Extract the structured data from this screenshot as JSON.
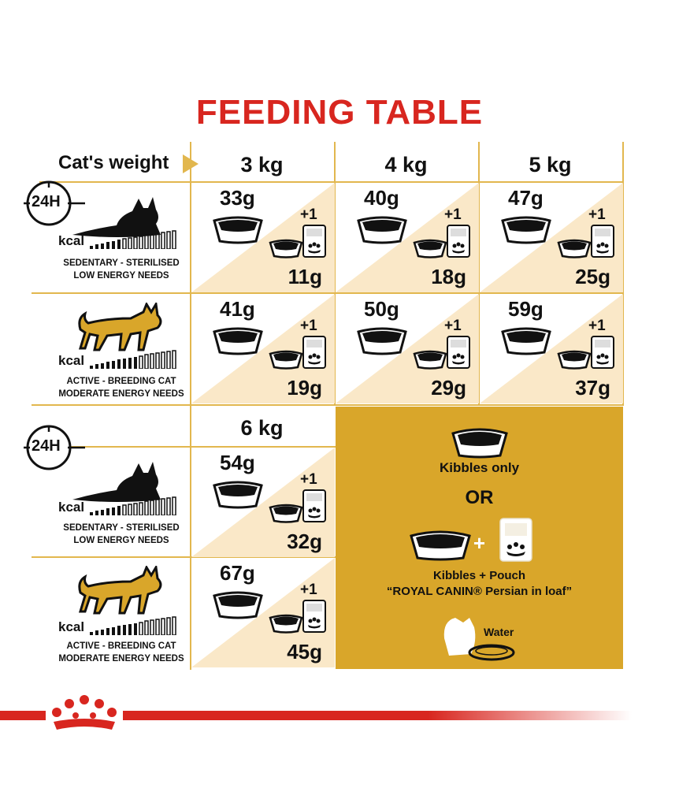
{
  "title": "FEEDING TABLE",
  "cats_weight_label": "Cat's weight",
  "weights": [
    "3 kg",
    "4 kg",
    "5 kg",
    "6 kg"
  ],
  "clock_label": "24H",
  "profiles": {
    "sedentary": {
      "kcal": "kcal",
      "line1": "SEDENTARY - STERILISED",
      "line2": "LOW ENERGY NEEDS"
    },
    "active": {
      "kcal": "kcal",
      "line1": "ACTIVE - BREEDING CAT",
      "line2": "MODERATE ENERGY NEEDS"
    }
  },
  "plus_one": "+1",
  "rows": {
    "r1": [
      {
        "kibbles": "33g",
        "pouch_kibbles": "11g"
      },
      {
        "kibbles": "40g",
        "pouch_kibbles": "18g"
      },
      {
        "kibbles": "47g",
        "pouch_kibbles": "25g"
      }
    ],
    "r2": [
      {
        "kibbles": "41g",
        "pouch_kibbles": "19g"
      },
      {
        "kibbles": "50g",
        "pouch_kibbles": "29g"
      },
      {
        "kibbles": "59g",
        "pouch_kibbles": "37g"
      }
    ],
    "r3": [
      {
        "kibbles": "54g",
        "pouch_kibbles": "32g"
      }
    ],
    "r4": [
      {
        "kibbles": "67g",
        "pouch_kibbles": "45g"
      }
    ]
  },
  "legend": {
    "kibbles_only": "Kibbles only",
    "or": "OR",
    "plus": "+",
    "kibbles_pouch": "Kibbles + Pouch",
    "product": "“ROYAL CANIN® Persian in loaf”",
    "water": "Water"
  },
  "colors": {
    "title_red": "#d8261f",
    "grid_gold": "#e2b74e",
    "cell_cream": "#fae8c8",
    "legend_gold": "#d9a62a",
    "cat_gold": "#d9a62a"
  }
}
